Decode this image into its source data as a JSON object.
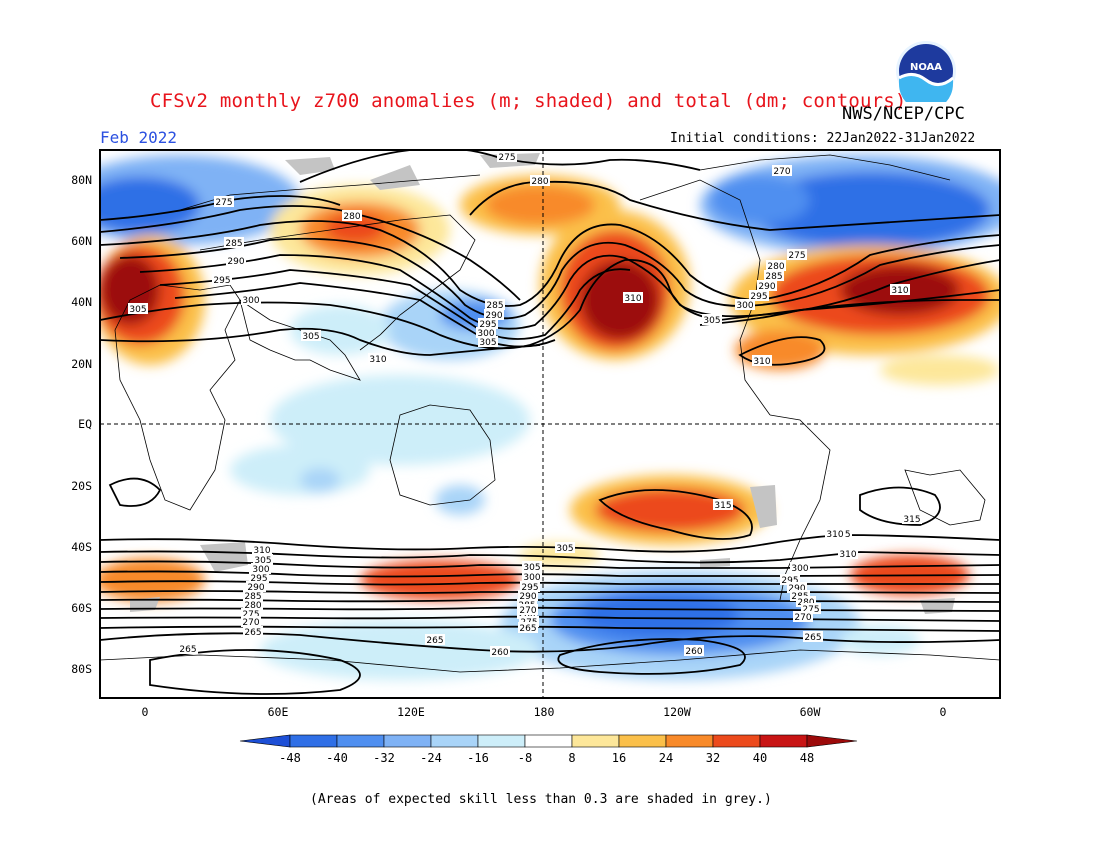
{
  "title": "CFSv2 monthly z700 anomalies (m; shaded) and total (dm; contours)",
  "period": "Feb 2022",
  "organization": "NWS/NCEP/CPC",
  "initial_conditions": "Initial conditions: 22Jan2022-31Jan2022",
  "footnote": "(Areas of expected skill less than 0.3 are shaded in grey.)",
  "logo_text": "NOAA",
  "lat_labels": [
    "80N",
    "60N",
    "40N",
    "20N",
    "EQ",
    "20S",
    "40S",
    "60S",
    "80S"
  ],
  "lon_labels": [
    "0",
    "60E",
    "120E",
    "180",
    "120W",
    "60W",
    "0"
  ],
  "colorbar": {
    "ticks": [
      "-48",
      "-40",
      "-32",
      "-24",
      "-16",
      "-8",
      "8",
      "16",
      "24",
      "32",
      "40",
      "48"
    ],
    "colors": [
      "#1d4fd6",
      "#2f6fe6",
      "#4f8ff0",
      "#7fb2f5",
      "#a9d4f8",
      "#cdeef9",
      "#ffffff",
      "#fde79a",
      "#fbc04a",
      "#f88a2a",
      "#ec4a1c",
      "#c81414",
      "#9c0a0a"
    ]
  },
  "contour_labels": [
    "275",
    "280",
    "270",
    "275",
    "280",
    "285",
    "290",
    "295",
    "300",
    "310",
    "305",
    "310",
    "285",
    "290",
    "295",
    "300",
    "305",
    "310",
    "305",
    "275",
    "280",
    "285",
    "290",
    "295",
    "300",
    "305",
    "310",
    "315",
    "315",
    "315",
    "310",
    "305",
    "310",
    "305",
    "300",
    "295",
    "290",
    "285",
    "280",
    "275",
    "270",
    "265",
    "260",
    "265",
    "265",
    "260",
    "305",
    "300",
    "295",
    "290",
    "285",
    "280",
    "275",
    "270",
    "265",
    "310",
    "300",
    "295",
    "290",
    "285",
    "280",
    "275",
    "270",
    "265"
  ]
}
